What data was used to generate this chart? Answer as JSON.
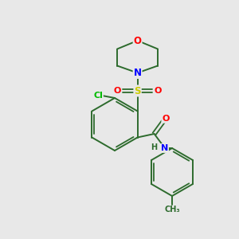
{
  "bg_color": "#e8e8e8",
  "bond_color": "#2d6b2d",
  "atom_colors": {
    "O": "#ff0000",
    "N": "#0000ff",
    "S": "#cccc00",
    "Cl": "#00bb00",
    "C": "#2d6b2d",
    "H": "#2d6b2d"
  },
  "figsize": [
    3.0,
    3.0
  ],
  "dpi": 100
}
